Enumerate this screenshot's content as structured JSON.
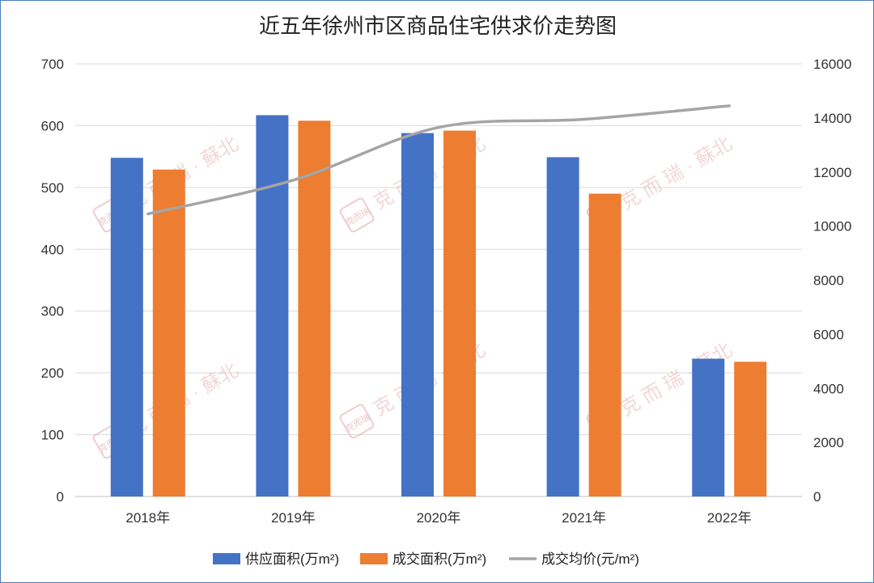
{
  "chart_data": {
    "type": "bar",
    "title": "近五年徐州市区商品住宅供求价走势图",
    "categories": [
      "2018年",
      "2019年",
      "2020年",
      "2021年",
      "2022年"
    ],
    "series": [
      {
        "name": "供应面积(万m²)",
        "kind": "bar",
        "axis": "left",
        "color": "#4472c4",
        "values": [
          548,
          617,
          588,
          549,
          223
        ]
      },
      {
        "name": "成交面积(万m²)",
        "kind": "bar",
        "axis": "left",
        "color": "#ed7d31",
        "values": [
          529,
          608,
          592,
          490,
          218
        ]
      },
      {
        "name": "成交均价(元/m²)",
        "kind": "line",
        "axis": "right",
        "color": "#a5a5a5",
        "values": [
          10450,
          11700,
          13650,
          13950,
          14450
        ]
      }
    ],
    "ylim_left": [
      0,
      700
    ],
    "yticks_left": [
      0,
      100,
      200,
      300,
      400,
      500,
      600,
      700
    ],
    "ylim_right": [
      0,
      16000
    ],
    "yticks_right": [
      0,
      2000,
      4000,
      6000,
      8000,
      10000,
      12000,
      14000,
      16000
    ],
    "grid": true,
    "legend_position": "bottom"
  },
  "watermark": {
    "text": "克 而 瑞 · 蘇北",
    "seal_text": "克而瑞"
  }
}
